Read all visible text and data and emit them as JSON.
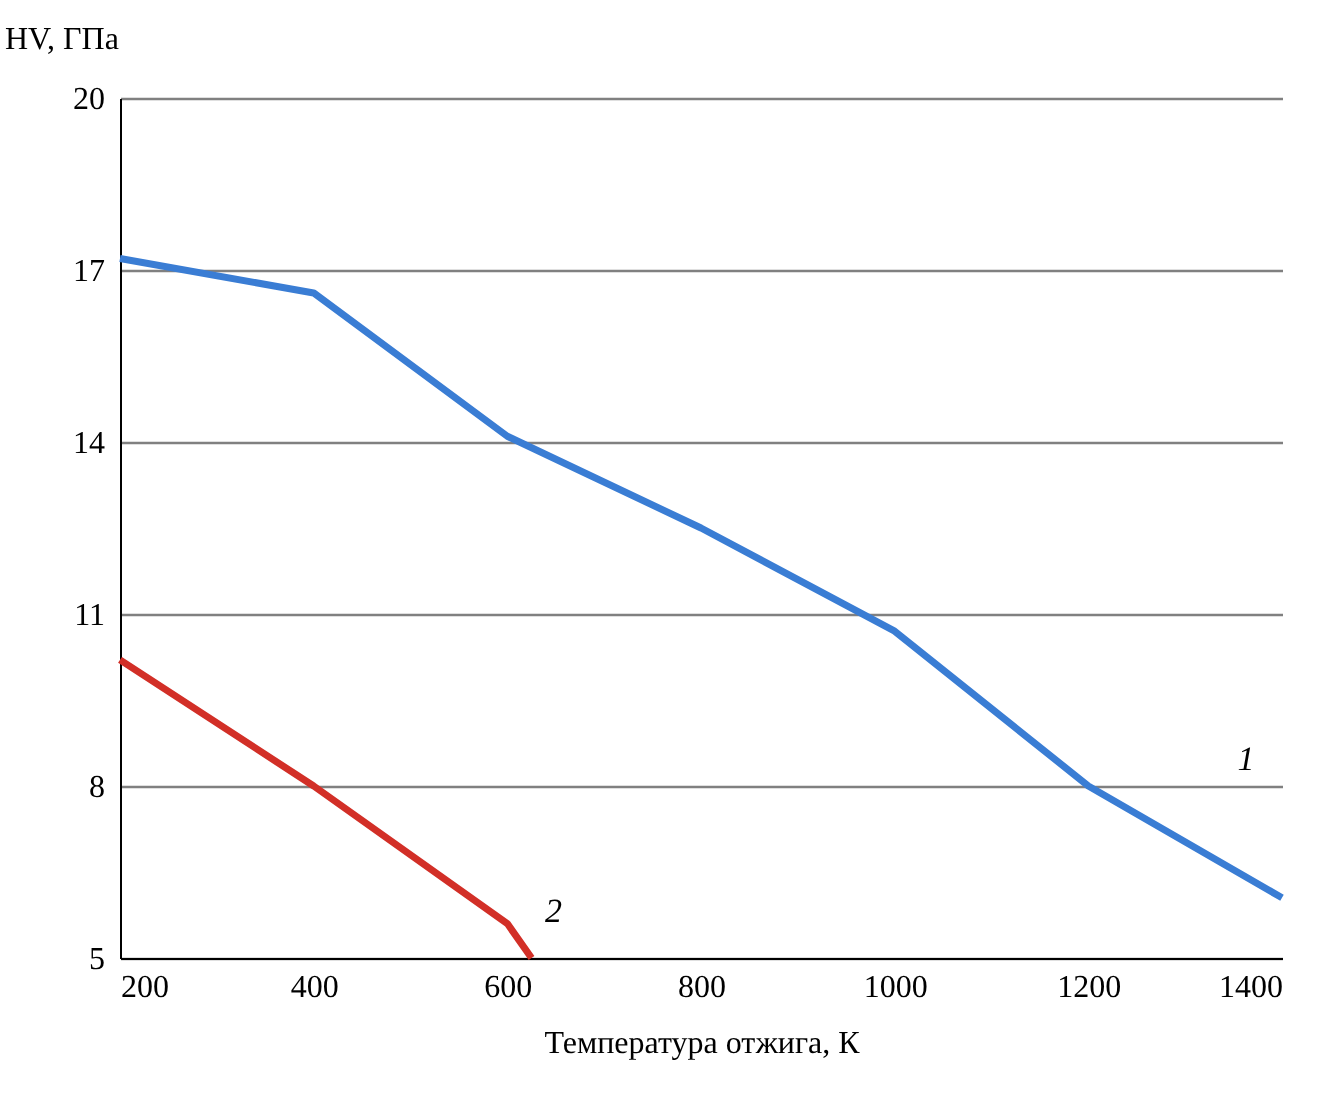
{
  "chart_data": {
    "type": "line",
    "xlabel": "Температура отжига, К",
    "ylabel": "HV, ГПа",
    "x": [
      200,
      400,
      600,
      800,
      1000,
      1200,
      1400
    ],
    "series": [
      {
        "name": "1",
        "color": "#3a7dd4",
        "values": [
          17.2,
          16.6,
          14.1,
          12.5,
          10.7,
          8.0,
          6.05
        ]
      },
      {
        "name": "2",
        "color": "#d22f27",
        "x": [
          200,
          400,
          600,
          625
        ],
        "values": [
          10.2,
          8.0,
          5.6,
          5.0
        ]
      }
    ],
    "xlim": [
      200,
      1400
    ],
    "xticks": [
      200,
      400,
      600,
      800,
      1000,
      1200,
      1400
    ],
    "ylim": [
      5,
      20
    ],
    "yticks": [
      5,
      8,
      11,
      14,
      17,
      20
    ],
    "grid": "y",
    "legend": false,
    "marker": "none",
    "line_style": "solid"
  }
}
